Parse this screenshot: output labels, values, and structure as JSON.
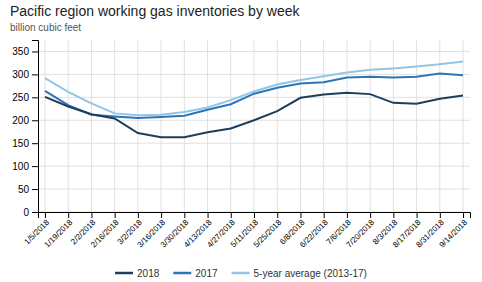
{
  "chart_data": {
    "type": "line",
    "title": "Pacific region working gas inventories by week",
    "subtitle": "billion cubic feet",
    "categories": [
      "1/5/2018",
      "1/19/2018",
      "2/2/2018",
      "2/16/2018",
      "3/2/2018",
      "3/16/2018",
      "3/30/2018",
      "4/13/2018",
      "4/27/2018",
      "5/11/2018",
      "5/25/2018",
      "6/8/2018",
      "6/22/2018",
      "7/6/2018",
      "7/20/2018",
      "8/3/2018",
      "8/17/2018",
      "8/31/2018",
      "9/14/2018"
    ],
    "series": [
      {
        "name": "2018",
        "color": "#1c3f5e",
        "values": [
          251,
          230,
          213,
          204,
          172,
          163,
          163,
          174,
          182,
          200,
          220,
          249,
          256,
          260,
          257,
          238,
          236,
          247,
          254
        ]
      },
      {
        "name": "2017",
        "color": "#2e75b6",
        "values": [
          264,
          233,
          212,
          208,
          205,
          207,
          210,
          223,
          235,
          258,
          271,
          280,
          283,
          293,
          295,
          293,
          295,
          302,
          298
        ]
      },
      {
        "name": "5-year average (2013-17)",
        "color": "#92c5e8",
        "values": [
          292,
          262,
          237,
          215,
          211,
          212,
          218,
          228,
          244,
          263,
          278,
          288,
          296,
          304,
          310,
          313,
          317,
          322,
          328
        ]
      }
    ],
    "ylim": [
      0,
      375
    ],
    "yticks": [
      0,
      50,
      100,
      150,
      200,
      250,
      300,
      350
    ],
    "grid": true,
    "legend": "bottom"
  }
}
